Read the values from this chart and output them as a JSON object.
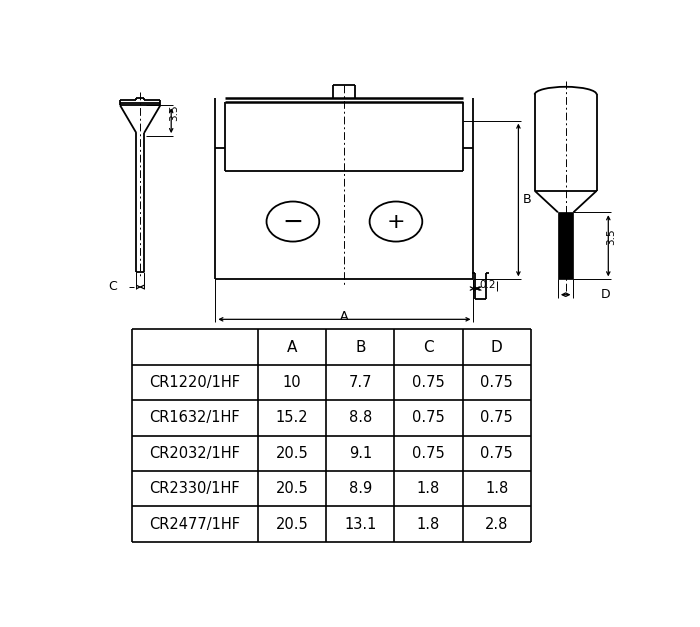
{
  "table_headers": [
    "",
    "A",
    "B",
    "C",
    "D"
  ],
  "table_rows": [
    [
      "CR1220/1HF",
      "10",
      "7.7",
      "0.75",
      "0.75"
    ],
    [
      "CR1632/1HF",
      "15.2",
      "8.8",
      "0.75",
      "0.75"
    ],
    [
      "CR2032/1HF",
      "20.5",
      "9.1",
      "0.75",
      "0.75"
    ],
    [
      "CR2330/1HF",
      "20.5",
      "8.9",
      "1.8",
      "1.8"
    ],
    [
      "CR2477/1HF",
      "20.5",
      "13.1",
      "1.8",
      "2.8"
    ]
  ],
  "bg_color": "#ffffff",
  "line_color": "#000000",
  "text_color": "#000000"
}
